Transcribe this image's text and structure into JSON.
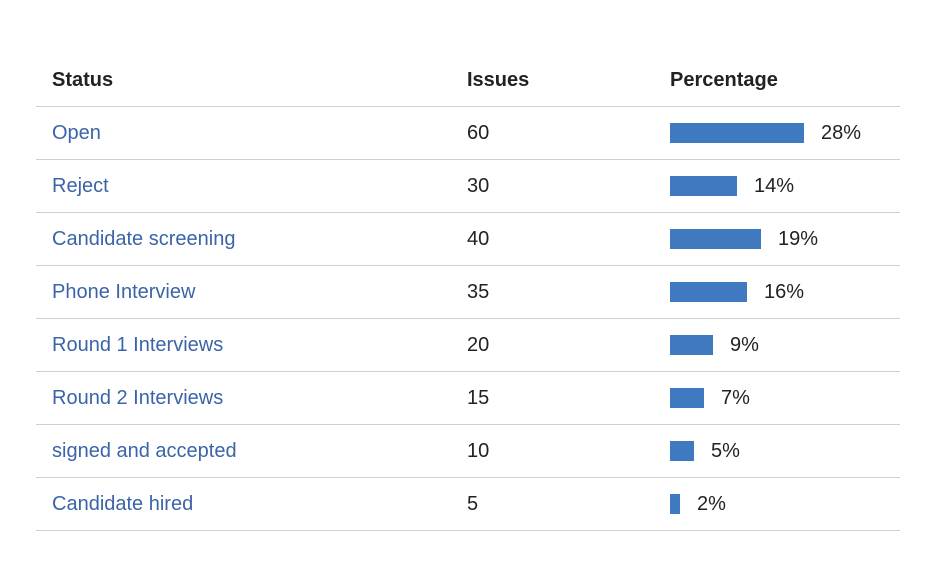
{
  "table": {
    "headers": {
      "status": "Status",
      "issues": "Issues",
      "percentage": "Percentage"
    },
    "rows": [
      {
        "status": "Open",
        "issues": "60",
        "percentage": "28%",
        "fraction": 0.28
      },
      {
        "status": "Reject",
        "issues": "30",
        "percentage": "14%",
        "fraction": 0.14
      },
      {
        "status": "Candidate screening",
        "issues": "40",
        "percentage": "19%",
        "fraction": 0.19
      },
      {
        "status": "Phone Interview",
        "issues": "35",
        "percentage": "16%",
        "fraction": 0.16
      },
      {
        "status": "Round 1 Interviews",
        "issues": "20",
        "percentage": "9%",
        "fraction": 0.09
      },
      {
        "status": "Round 2 Interviews",
        "issues": "15",
        "percentage": "7%",
        "fraction": 0.07
      },
      {
        "status": "signed and accepted",
        "issues": "10",
        "percentage": "5%",
        "fraction": 0.05
      },
      {
        "status": "Candidate hired",
        "issues": "5",
        "percentage": "2%",
        "fraction": 0.02
      }
    ]
  },
  "colors": {
    "link": "#3b64a8",
    "bar": "#3f7ac0",
    "divider": "#cfcfcf"
  }
}
